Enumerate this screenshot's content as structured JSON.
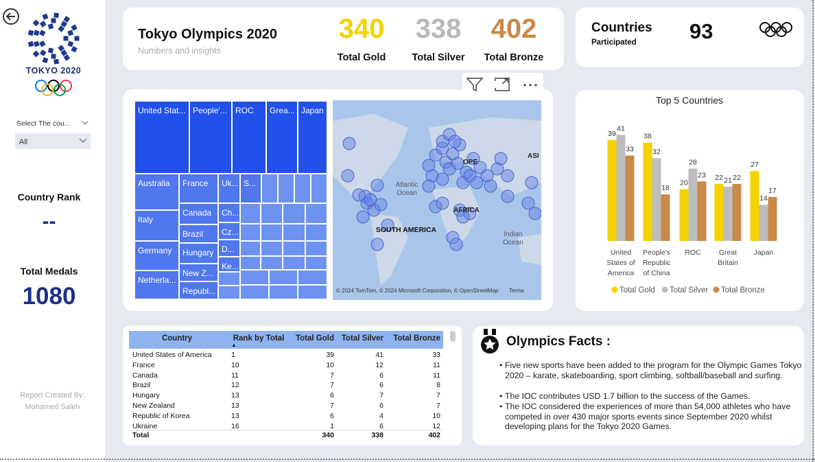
{
  "sidebar": {
    "logo_text": "TOKYO 2020",
    "slicer_label": "Select The cou...",
    "slicer_value": "All",
    "rank_label": "Country Rank",
    "rank_value": "--",
    "medals_label": "Total Medals",
    "medals_value": 1080,
    "credit_line1": "Report Created By:",
    "credit_line2": "Mohamed Saleh"
  },
  "header": {
    "title": "Tokyo Olympics 2020",
    "subtitle": "Numbers and insights",
    "kpis": [
      {
        "value": 340,
        "label": "Total Gold",
        "color": "#f5d200"
      },
      {
        "value": 338,
        "label": "Total Silver",
        "color": "#b9b9b9"
      },
      {
        "value": 402,
        "label": "Total Bronze",
        "color": "#c98a4a"
      }
    ]
  },
  "countries": {
    "label": "Countries",
    "sublabel": "Participated",
    "value": 93
  },
  "treemap": {
    "labels": [
      "United Stat...",
      "People'...",
      "ROC",
      "Grea...",
      "Japan",
      "Australia",
      "France",
      "Uk...",
      "S...",
      "Italy",
      "Canada",
      "Ch...",
      "Brazil",
      "Cz...",
      "Germany",
      "Hungary",
      "D...",
      "Ke...",
      "Netherla...",
      "New Z...",
      "Republ..."
    ]
  },
  "map": {
    "labels": [
      "OPE",
      "ASI",
      "Atlantic",
      "Ocean",
      "AFRICA",
      "SOUTH AMERICA",
      "Indian",
      "Ocean",
      "© 2024 TomTom, © 2024 Microsoft Corporation, © OpenStreetMap",
      "Terms"
    ]
  },
  "chart_data": {
    "type": "bar",
    "title": "Top 5 Countries",
    "categories": [
      "United States of America",
      "People's Republic of China",
      "ROC",
      "Great Britain",
      "Japan"
    ],
    "series": [
      {
        "name": "Total Gold",
        "color": "#f5d200",
        "values": [
          39,
          38,
          20,
          22,
          27
        ]
      },
      {
        "name": "Total Silver",
        "color": "#bdbdbd",
        "values": [
          41,
          32,
          28,
          21,
          14
        ]
      },
      {
        "name": "Total Bronze",
        "color": "#c98a4a",
        "values": [
          33,
          18,
          23,
          22,
          17
        ]
      }
    ]
  },
  "table": {
    "columns": [
      "Country",
      "Rank by Total",
      "Total Gold",
      "Total Silver",
      "Total Bronze"
    ],
    "rows": [
      [
        "United States of America",
        1,
        39,
        41,
        33
      ],
      [
        "France",
        10,
        10,
        12,
        11
      ],
      [
        "Canada",
        11,
        7,
        6,
        11
      ],
      [
        "Brazil",
        12,
        7,
        6,
        8
      ],
      [
        "Hungary",
        13,
        6,
        7,
        7
      ],
      [
        "New Zealand",
        13,
        7,
        6,
        7
      ],
      [
        "Republic of Korea",
        13,
        6,
        4,
        10
      ],
      [
        "Ukraine",
        16,
        1,
        6,
        12
      ]
    ],
    "total": {
      "label": "Total",
      "gold": 340,
      "silver": 338,
      "bronze": 402
    }
  },
  "facts": {
    "title": "Olympics Facts :",
    "items": [
      "Five new sports have been added to the program for the Olympic Games Tokyo 2020 – karate, skateboarding, sport climbing, softball/baseball and surfing.",
      "The IOC contributes USD 1.7 billion to the success of the Games.",
      "The IOC considered the experiences of more than 54,000 athletes who have competed in over 430 major sports events since September 2020 whilst developing plans for the Tokyo 2020 Games."
    ]
  }
}
